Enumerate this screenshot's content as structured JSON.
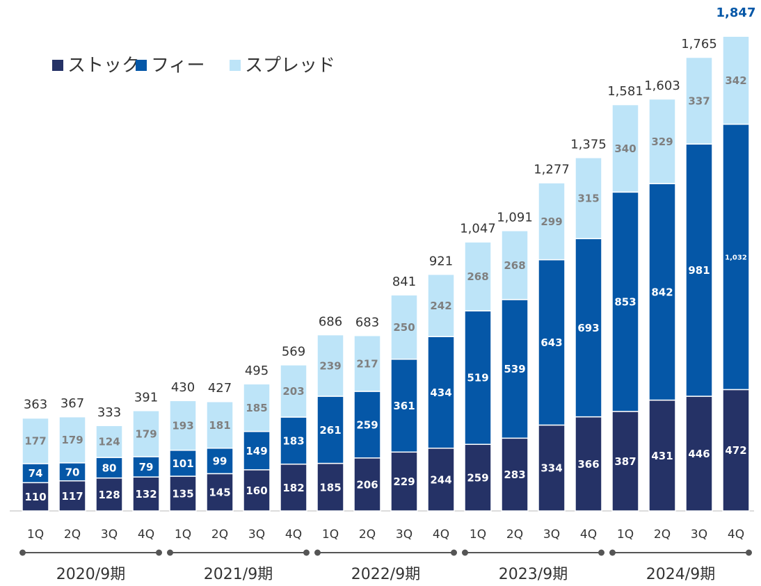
{
  "chart_data": {
    "type": "stacked_bar",
    "categories": [
      "1Q",
      "2Q",
      "3Q",
      "4Q",
      "1Q",
      "2Q",
      "3Q",
      "4Q",
      "1Q",
      "2Q",
      "3Q",
      "4Q",
      "1Q",
      "2Q",
      "3Q",
      "4Q",
      "1Q",
      "2Q",
      "3Q",
      "4Q"
    ],
    "groups": [
      "2020/9期",
      "2021/9期",
      "2022/9期",
      "2023/9期",
      "2024/9期"
    ],
    "series": [
      {
        "name": "ストック",
        "color": "#253266",
        "label_color": "#ffffff",
        "values": [
          110,
          117,
          128,
          132,
          135,
          145,
          160,
          182,
          185,
          206,
          229,
          244,
          259,
          283,
          334,
          366,
          387,
          431,
          446,
          472
        ]
      },
      {
        "name": "フィー",
        "color": "#0557a7",
        "label_color": "#ffffff",
        "values": [
          74,
          70,
          80,
          79,
          101,
          99,
          149,
          183,
          261,
          259,
          361,
          434,
          519,
          539,
          643,
          693,
          853,
          842,
          981,
          1032
        ],
        "value_labels": [
          "74",
          "70",
          "80",
          "79",
          "101",
          "99",
          "149",
          "183",
          "261",
          "259",
          "361",
          "434",
          "519",
          "539",
          "643",
          "693",
          "853",
          "842",
          "981",
          "1,032"
        ]
      },
      {
        "name": "スプレッド",
        "color": "#bde4f8",
        "label_color": "#7f7f7f",
        "values": [
          177,
          179,
          124,
          179,
          193,
          181,
          185,
          203,
          239,
          217,
          250,
          242,
          268,
          268,
          299,
          315,
          340,
          329,
          337,
          342
        ]
      }
    ],
    "totals": [
      363,
      367,
      333,
      391,
      430,
      427,
      495,
      569,
      686,
      683,
      841,
      921,
      1047,
      1091,
      1277,
      1375,
      1581,
      1603,
      1765,
      1847
    ],
    "total_labels": [
      "363",
      "367",
      "333",
      "391",
      "430",
      "427",
      "495",
      "569",
      "686",
      "683",
      "841",
      "921",
      "1,047",
      "1,091",
      "1,277",
      "1,375",
      "1,581",
      "1,603",
      "1,765",
      "1,847"
    ],
    "ylim": [
      0,
      1933
    ],
    "legend": "top-left"
  }
}
